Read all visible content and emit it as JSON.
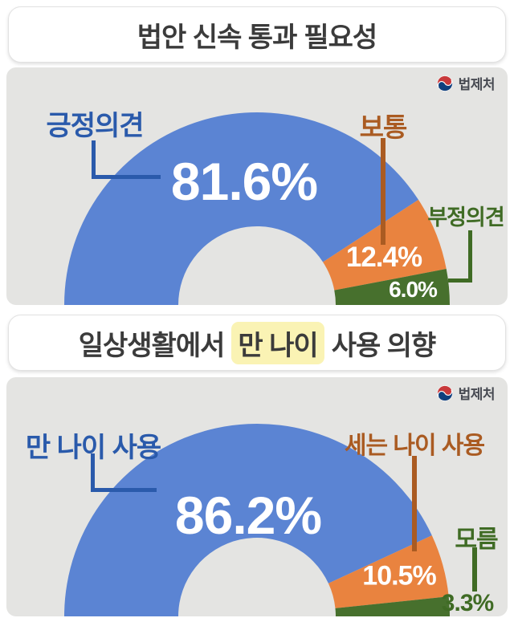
{
  "page": {
    "background": "#ffffff",
    "panel_color": "#e4e4e2"
  },
  "logo": {
    "text": "법제처",
    "emblem_red": "#c8393b",
    "emblem_blue": "#0f3f7d"
  },
  "sections": [
    {
      "title_normal": "법안 신속 통과",
      "title_bold": "필요성"
    },
    {
      "title_normal": "일상생활에서",
      "title_highlight": "만 나이",
      "title_bold": "사용 의향",
      "highlight_color": "#faf3b4"
    }
  ],
  "chart_data": [
    {
      "type": "pie",
      "subtype": "semicircle_donut",
      "title": "법안 신속 통과 필요성",
      "unit": "%",
      "total": 100,
      "segments": [
        {
          "label": "긍정의견",
          "value": 81.6,
          "display": "81.6%",
          "color": "#5b84d3",
          "label_color": "#2a5aab"
        },
        {
          "label": "보통",
          "value": 12.4,
          "display": "12.4%",
          "color": "#e9833f",
          "label_color": "#aa5b22"
        },
        {
          "label": "부정의견",
          "value": 6.0,
          "display": "6.0%",
          "color": "#47702d",
          "label_color": "#3f6b24"
        }
      ]
    },
    {
      "type": "pie",
      "subtype": "semicircle_donut",
      "title": "일상생활에서 만 나이 사용 의향",
      "unit": "%",
      "total": 100,
      "segments": [
        {
          "label": "만 나이 사용",
          "value": 86.2,
          "display": "86.2%",
          "color": "#5b84d3",
          "label_color": "#2a5aab"
        },
        {
          "label": "세는 나이 사용",
          "value": 10.5,
          "display": "10.5%",
          "color": "#e9833f",
          "label_color": "#aa5b22"
        },
        {
          "label": "모름",
          "value": 3.3,
          "display": "3.3%",
          "color": "#47702d",
          "label_color": "#3f6b24"
        }
      ]
    }
  ]
}
